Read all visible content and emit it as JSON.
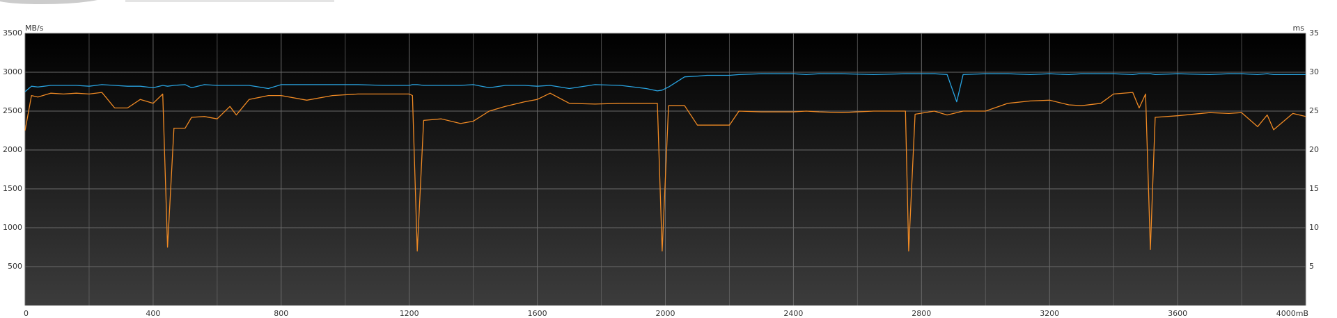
{
  "chart_data": {
    "type": "line",
    "ylabel": "MB/s",
    "y2label": "ms",
    "x": [
      0,
      20,
      40,
      80,
      120,
      160,
      200,
      240,
      280,
      320,
      360,
      400,
      430,
      445,
      465,
      500,
      520,
      560,
      600,
      640,
      660,
      700,
      760,
      800,
      880,
      960,
      1040,
      1120,
      1200,
      1210,
      1225,
      1245,
      1300,
      1360,
      1400,
      1450,
      1500,
      1560,
      1600,
      1640,
      1700,
      1780,
      1860,
      1940,
      1975,
      1990,
      2010,
      2060,
      2100,
      2130,
      2200,
      2230,
      2300,
      2400,
      2440,
      2480,
      2550,
      2650,
      2750,
      2760,
      2780,
      2840,
      2880,
      2910,
      2930,
      3000,
      3070,
      3140,
      3200,
      3260,
      3300,
      3360,
      3400,
      3460,
      3480,
      3500,
      3515,
      3530,
      3600,
      3700,
      3760,
      3800,
      3850,
      3880,
      3900,
      3960,
      4000
    ],
    "series": [
      {
        "color": "#29a3e0",
        "values": [
          2750,
          2820,
          2810,
          2830,
          2830,
          2830,
          2820,
          2840,
          2830,
          2820,
          2820,
          2800,
          2830,
          2820,
          2830,
          2840,
          2800,
          2840,
          2830,
          2830,
          2830,
          2830,
          2790,
          2840,
          2840,
          2840,
          2840,
          2830,
          2830,
          2840,
          2840,
          2830,
          2830,
          2830,
          2840,
          2800,
          2830,
          2830,
          2820,
          2830,
          2790,
          2840,
          2830,
          2790,
          2760,
          2770,
          2810,
          2940,
          2950,
          2960,
          2960,
          2970,
          2980,
          2980,
          2970,
          2980,
          2980,
          2970,
          2980,
          2980,
          2980,
          2980,
          2970,
          2620,
          2970,
          2980,
          2980,
          2970,
          2980,
          2970,
          2980,
          2980,
          2980,
          2970,
          2980,
          2980,
          2980,
          2970,
          2980,
          2970,
          2980,
          2980,
          2970,
          2980,
          2970,
          2970,
          2970
        ]
      },
      {
        "color": "#f08a24",
        "values": [
          2250,
          2700,
          2680,
          2730,
          2720,
          2730,
          2720,
          2740,
          2540,
          2540,
          2650,
          2600,
          2720,
          750,
          2280,
          2280,
          2420,
          2430,
          2400,
          2560,
          2450,
          2650,
          2700,
          2700,
          2640,
          2700,
          2720,
          2720,
          2720,
          2700,
          700,
          2380,
          2400,
          2340,
          2370,
          2500,
          2560,
          2620,
          2650,
          2730,
          2600,
          2590,
          2600,
          2600,
          2600,
          700,
          2570,
          2570,
          2320,
          2320,
          2320,
          2500,
          2490,
          2490,
          2500,
          2490,
          2480,
          2500,
          2500,
          700,
          2460,
          2500,
          2450,
          2480,
          2500,
          2500,
          2600,
          2630,
          2640,
          2580,
          2570,
          2600,
          2720,
          2740,
          2540,
          2720,
          720,
          2420,
          2440,
          2480,
          2470,
          2480,
          2300,
          2450,
          2260,
          2470,
          2430
        ]
      }
    ],
    "xlim": [
      0,
      4000
    ],
    "xticks": [
      0,
      400,
      800,
      1200,
      1600,
      2000,
      2400,
      2800,
      3200,
      3600,
      {
        "value": 4000,
        "label": "4000mB"
      }
    ],
    "xminorticks": [
      200,
      600,
      1000,
      1400,
      1800,
      2200,
      2600,
      3000,
      3400,
      3800
    ],
    "ylim": [
      0,
      3500
    ],
    "yticks": [
      500,
      1000,
      1500,
      2000,
      2500,
      3000,
      3500
    ],
    "y2lim": [
      0,
      35
    ],
    "y2ticks": [
      5,
      10,
      15,
      20,
      25,
      30,
      35
    ],
    "grid": true
  }
}
